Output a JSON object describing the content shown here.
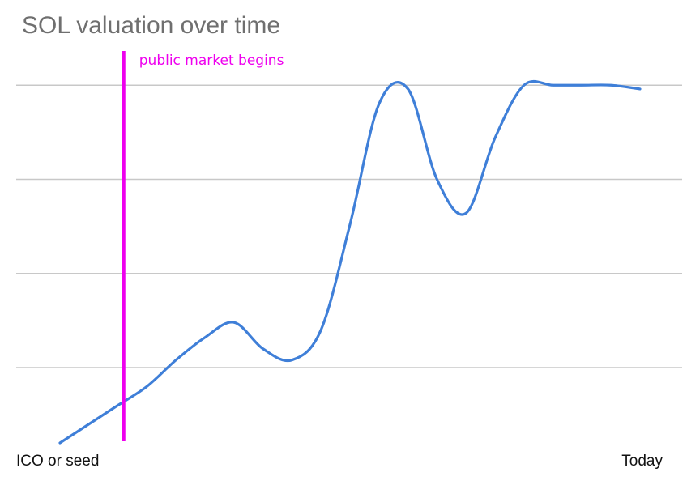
{
  "chart_data": {
    "type": "line",
    "title": "SOL valuation over time",
    "xlabel": "",
    "ylabel": "",
    "x_ticks": [
      "ICO or seed",
      "Today"
    ],
    "xlim": [
      0,
      100
    ],
    "ylim": [
      0,
      100
    ],
    "grid": true,
    "gridlines_y": [
      20,
      45,
      70,
      95
    ],
    "series": [
      {
        "name": "",
        "color": "#3f7fd8",
        "x": [
          0,
          5,
          10,
          15,
          20,
          25,
          30,
          35,
          40,
          45,
          50,
          55,
          60,
          65,
          70,
          75,
          80,
          85,
          90,
          95,
          100
        ],
        "y": [
          0,
          5,
          10,
          15,
          22,
          28,
          32,
          25,
          22,
          30,
          58,
          90,
          94,
          70,
          61,
          81,
          95,
          95,
          95,
          95,
          94
        ]
      }
    ],
    "annotations": [
      {
        "type": "vertical-line",
        "x": 11,
        "label": "public market begins",
        "color": "#ee00ee"
      }
    ]
  }
}
